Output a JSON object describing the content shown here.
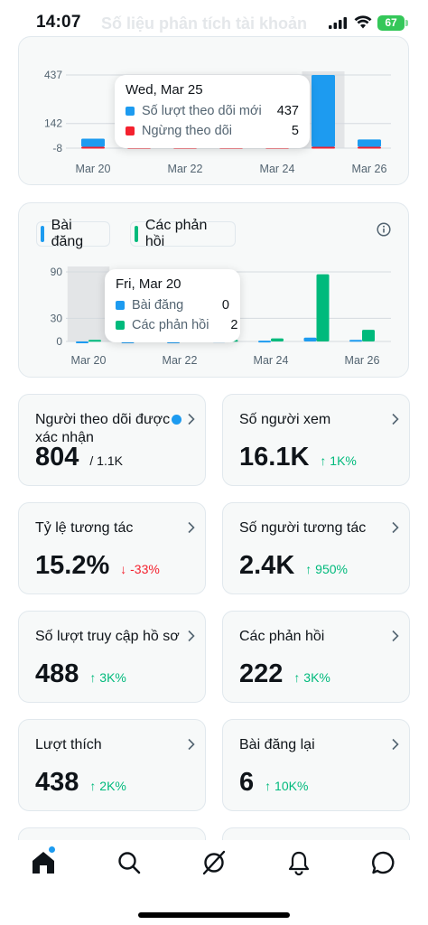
{
  "status_bar": {
    "time": "14:07",
    "battery": "67",
    "background_title": "Số liệu phân tích tài khoản"
  },
  "colors": {
    "blue": "#1d9bf0",
    "red": "#f4212e",
    "green": "#00ba7c",
    "up": "#00ba7c",
    "down": "#f4212e"
  },
  "chart_data": [
    {
      "type": "bar",
      "y_ticks": [
        "437",
        "142",
        "-8"
      ],
      "ylim": [
        -8,
        437
      ],
      "x_tick_labels": [
        "Mar 20",
        "Mar 22",
        "Mar 24",
        "Mar 26"
      ],
      "categories": [
        "Mar 20",
        "Mar 21",
        "Mar 22",
        "Mar 23",
        "Mar 24",
        "Mar 25",
        "Mar 26"
      ],
      "series": [
        {
          "name": "Số lượt theo dõi mới",
          "color": "#1d9bf0",
          "values": [
            50,
            10,
            22,
            30,
            35,
            437,
            45
          ]
        },
        {
          "name": "Ngừng theo dõi",
          "color": "#f4212e",
          "values": [
            -2,
            -4,
            -1,
            -1,
            -1,
            -5,
            -1
          ]
        }
      ],
      "tooltip": {
        "date": "Wed, Mar 25",
        "rows": [
          {
            "label": "Số lượt theo dõi mới",
            "value": "437"
          },
          {
            "label": "Ngừng theo dõi",
            "value": "5"
          }
        ]
      }
    },
    {
      "type": "bar",
      "legend": [
        "Bài đăng",
        "Các phản hồi"
      ],
      "y_ticks": [
        "90",
        "30",
        "0"
      ],
      "ylim": [
        0,
        90
      ],
      "x_tick_labels": [
        "Mar 20",
        "Mar 22",
        "Mar 24",
        "Mar 26"
      ],
      "categories": [
        "Mar 20",
        "Mar 21",
        "Mar 22",
        "Mar 23",
        "Mar 24",
        "Mar 25",
        "Mar 26"
      ],
      "series": [
        {
          "name": "Bài đăng",
          "color": "#1d9bf0",
          "values": [
            0,
            0,
            0,
            1,
            1,
            5,
            2
          ]
        },
        {
          "name": "Các phản hồi",
          "color": "#00ba7c",
          "values": [
            2,
            2,
            2,
            2,
            4,
            87,
            15
          ]
        }
      ],
      "tooltip": {
        "date": "Fri, Mar 20",
        "rows": [
          {
            "label": "Bài đăng",
            "value": "0"
          },
          {
            "label": "Các phản hồi",
            "value": "2"
          }
        ]
      }
    }
  ],
  "metrics": [
    {
      "label": "Người theo dõi được xác nhận",
      "value": "804",
      "sub": "/ 1.1K",
      "delta": "",
      "dir": ""
    },
    {
      "label": "Số người xem",
      "value": "16.1K",
      "sub": "",
      "delta": "↑ 1K%",
      "dir": "up"
    },
    {
      "label": "Tỷ lệ tương tác",
      "value": "15.2%",
      "sub": "",
      "delta": "↓ -33%",
      "dir": "down"
    },
    {
      "label": "Số người tương tác",
      "value": "2.4K",
      "sub": "",
      "delta": "↑ 950%",
      "dir": "up"
    },
    {
      "label": "Số lượt truy cập hồ sơ",
      "value": "488",
      "sub": "",
      "delta": "↑ 3K%",
      "dir": "up"
    },
    {
      "label": "Các phản hồi",
      "value": "222",
      "sub": "",
      "delta": "↑ 3K%",
      "dir": "up"
    },
    {
      "label": "Lượt thích",
      "value": "438",
      "sub": "",
      "delta": "↑ 2K%",
      "dir": "up"
    },
    {
      "label": "Bài đăng lại",
      "value": "6",
      "sub": "",
      "delta": "↑ 10K%",
      "dir": "up"
    }
  ],
  "tabs": [
    "home-icon",
    "search-icon",
    "grok-icon",
    "notifications-icon",
    "messages-icon"
  ]
}
